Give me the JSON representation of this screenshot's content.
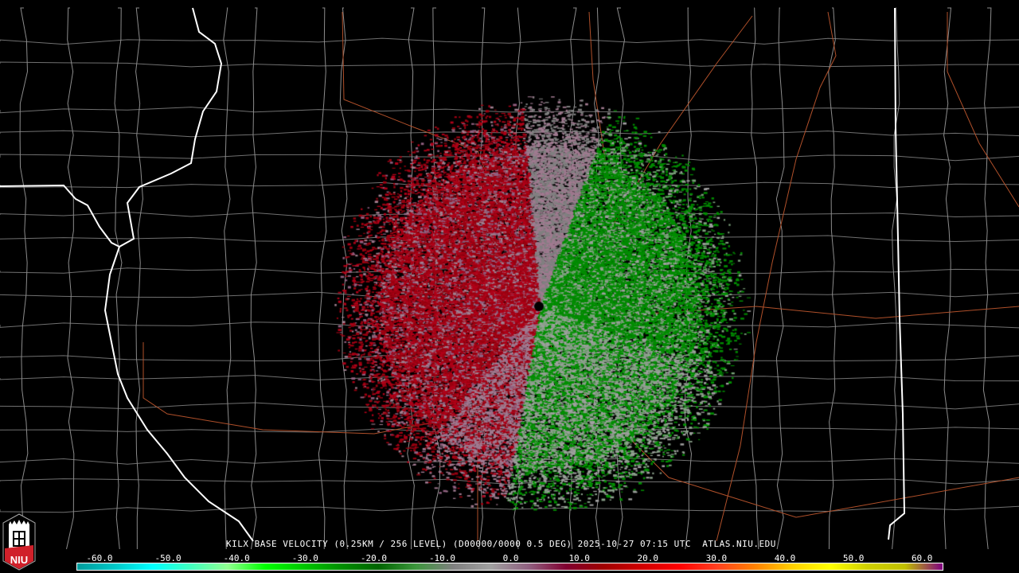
{
  "caption": {
    "station": "KILX",
    "text": "KILX BASE VELOCITY (0.25KM / 256 LEVEL) (D00000/0000 0.5 DEG) 2025-10-27 07:15 UTC  ATLAS.NIU.EDU"
  },
  "logo": {
    "text": "NIU",
    "icon": "niu-logo-icon"
  },
  "colorbar": {
    "units_ticks": [
      "-60.0",
      "-50.0",
      "-40.0",
      "-30.0",
      "-20.0",
      "-10.0",
      "0.0",
      "10.0",
      "20.0",
      "30.0",
      "40.0",
      "50.0",
      "60.0"
    ],
    "range": [
      -64,
      64
    ],
    "stops": [
      "#009c9c",
      "#00c8c8",
      "#00ffff",
      "#40ffc0",
      "#90ff90",
      "#00ff00",
      "#00c800",
      "#009000",
      "#006400",
      "#3c963c",
      "#808080",
      "#a0a0a0",
      "#906080",
      "#800030",
      "#a00000",
      "#d00000",
      "#ff0000",
      "#ff4020",
      "#ff8000",
      "#ffd000",
      "#ffff00",
      "#d0d000",
      "#c0c000",
      "#800080"
    ]
  },
  "colors": {
    "background": "#000000",
    "county_lines": "#8c8c8c",
    "state_lines": "#ffffff",
    "highways": "#b0502a",
    "inbound": "#009000",
    "outbound": "#a00010"
  },
  "radar": {
    "site": "KILX",
    "product": "Base Velocity",
    "elevation_deg": 0.5
  }
}
